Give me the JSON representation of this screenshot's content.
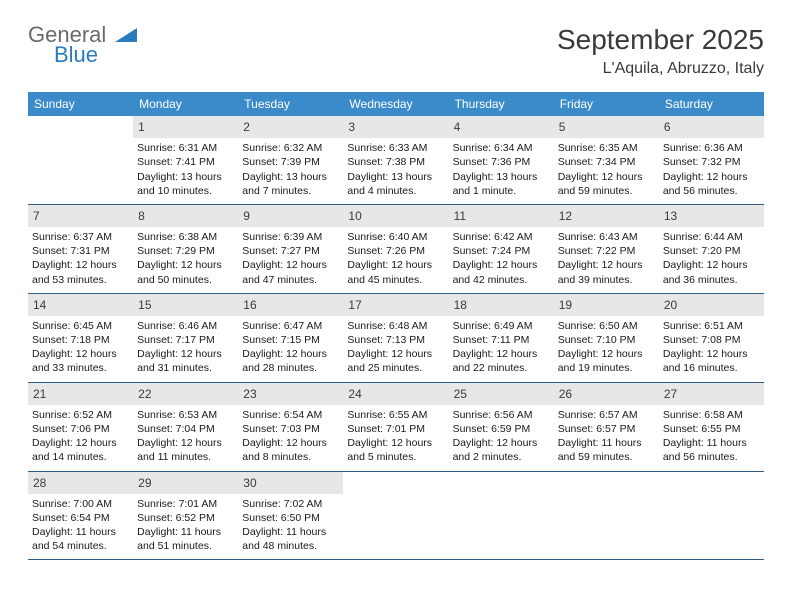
{
  "logo": {
    "text_general": "General",
    "text_blue": "Blue",
    "triangle_fill": "#2d7bbf"
  },
  "title": "September 2025",
  "location": "L'Aquila, Abruzzo, Italy",
  "colors": {
    "header_bg": "#3b8bca",
    "header_text": "#ffffff",
    "daynum_bg": "#e7e7e7",
    "daynum_text": "#3a3a3a",
    "week_border": "#2e5d84",
    "body_text": "#1a1a1a",
    "title_text": "#3a3a3a",
    "page_bg": "#ffffff"
  },
  "font": {
    "family": "Arial",
    "dow_size": 12,
    "body_size": 10.5,
    "title_size": 28,
    "location_size": 16
  },
  "days_of_week": [
    "Sunday",
    "Monday",
    "Tuesday",
    "Wednesday",
    "Thursday",
    "Friday",
    "Saturday"
  ],
  "weeks": [
    [
      {
        "num": "",
        "lines": []
      },
      {
        "num": "1",
        "lines": [
          "Sunrise: 6:31 AM",
          "Sunset: 7:41 PM",
          "Daylight: 13 hours",
          "and 10 minutes."
        ]
      },
      {
        "num": "2",
        "lines": [
          "Sunrise: 6:32 AM",
          "Sunset: 7:39 PM",
          "Daylight: 13 hours",
          "and 7 minutes."
        ]
      },
      {
        "num": "3",
        "lines": [
          "Sunrise: 6:33 AM",
          "Sunset: 7:38 PM",
          "Daylight: 13 hours",
          "and 4 minutes."
        ]
      },
      {
        "num": "4",
        "lines": [
          "Sunrise: 6:34 AM",
          "Sunset: 7:36 PM",
          "Daylight: 13 hours",
          "and 1 minute."
        ]
      },
      {
        "num": "5",
        "lines": [
          "Sunrise: 6:35 AM",
          "Sunset: 7:34 PM",
          "Daylight: 12 hours",
          "and 59 minutes."
        ]
      },
      {
        "num": "6",
        "lines": [
          "Sunrise: 6:36 AM",
          "Sunset: 7:32 PM",
          "Daylight: 12 hours",
          "and 56 minutes."
        ]
      }
    ],
    [
      {
        "num": "7",
        "lines": [
          "Sunrise: 6:37 AM",
          "Sunset: 7:31 PM",
          "Daylight: 12 hours",
          "and 53 minutes."
        ]
      },
      {
        "num": "8",
        "lines": [
          "Sunrise: 6:38 AM",
          "Sunset: 7:29 PM",
          "Daylight: 12 hours",
          "and 50 minutes."
        ]
      },
      {
        "num": "9",
        "lines": [
          "Sunrise: 6:39 AM",
          "Sunset: 7:27 PM",
          "Daylight: 12 hours",
          "and 47 minutes."
        ]
      },
      {
        "num": "10",
        "lines": [
          "Sunrise: 6:40 AM",
          "Sunset: 7:26 PM",
          "Daylight: 12 hours",
          "and 45 minutes."
        ]
      },
      {
        "num": "11",
        "lines": [
          "Sunrise: 6:42 AM",
          "Sunset: 7:24 PM",
          "Daylight: 12 hours",
          "and 42 minutes."
        ]
      },
      {
        "num": "12",
        "lines": [
          "Sunrise: 6:43 AM",
          "Sunset: 7:22 PM",
          "Daylight: 12 hours",
          "and 39 minutes."
        ]
      },
      {
        "num": "13",
        "lines": [
          "Sunrise: 6:44 AM",
          "Sunset: 7:20 PM",
          "Daylight: 12 hours",
          "and 36 minutes."
        ]
      }
    ],
    [
      {
        "num": "14",
        "lines": [
          "Sunrise: 6:45 AM",
          "Sunset: 7:18 PM",
          "Daylight: 12 hours",
          "and 33 minutes."
        ]
      },
      {
        "num": "15",
        "lines": [
          "Sunrise: 6:46 AM",
          "Sunset: 7:17 PM",
          "Daylight: 12 hours",
          "and 31 minutes."
        ]
      },
      {
        "num": "16",
        "lines": [
          "Sunrise: 6:47 AM",
          "Sunset: 7:15 PM",
          "Daylight: 12 hours",
          "and 28 minutes."
        ]
      },
      {
        "num": "17",
        "lines": [
          "Sunrise: 6:48 AM",
          "Sunset: 7:13 PM",
          "Daylight: 12 hours",
          "and 25 minutes."
        ]
      },
      {
        "num": "18",
        "lines": [
          "Sunrise: 6:49 AM",
          "Sunset: 7:11 PM",
          "Daylight: 12 hours",
          "and 22 minutes."
        ]
      },
      {
        "num": "19",
        "lines": [
          "Sunrise: 6:50 AM",
          "Sunset: 7:10 PM",
          "Daylight: 12 hours",
          "and 19 minutes."
        ]
      },
      {
        "num": "20",
        "lines": [
          "Sunrise: 6:51 AM",
          "Sunset: 7:08 PM",
          "Daylight: 12 hours",
          "and 16 minutes."
        ]
      }
    ],
    [
      {
        "num": "21",
        "lines": [
          "Sunrise: 6:52 AM",
          "Sunset: 7:06 PM",
          "Daylight: 12 hours",
          "and 14 minutes."
        ]
      },
      {
        "num": "22",
        "lines": [
          "Sunrise: 6:53 AM",
          "Sunset: 7:04 PM",
          "Daylight: 12 hours",
          "and 11 minutes."
        ]
      },
      {
        "num": "23",
        "lines": [
          "Sunrise: 6:54 AM",
          "Sunset: 7:03 PM",
          "Daylight: 12 hours",
          "and 8 minutes."
        ]
      },
      {
        "num": "24",
        "lines": [
          "Sunrise: 6:55 AM",
          "Sunset: 7:01 PM",
          "Daylight: 12 hours",
          "and 5 minutes."
        ]
      },
      {
        "num": "25",
        "lines": [
          "Sunrise: 6:56 AM",
          "Sunset: 6:59 PM",
          "Daylight: 12 hours",
          "and 2 minutes."
        ]
      },
      {
        "num": "26",
        "lines": [
          "Sunrise: 6:57 AM",
          "Sunset: 6:57 PM",
          "Daylight: 11 hours",
          "and 59 minutes."
        ]
      },
      {
        "num": "27",
        "lines": [
          "Sunrise: 6:58 AM",
          "Sunset: 6:55 PM",
          "Daylight: 11 hours",
          "and 56 minutes."
        ]
      }
    ],
    [
      {
        "num": "28",
        "lines": [
          "Sunrise: 7:00 AM",
          "Sunset: 6:54 PM",
          "Daylight: 11 hours",
          "and 54 minutes."
        ]
      },
      {
        "num": "29",
        "lines": [
          "Sunrise: 7:01 AM",
          "Sunset: 6:52 PM",
          "Daylight: 11 hours",
          "and 51 minutes."
        ]
      },
      {
        "num": "30",
        "lines": [
          "Sunrise: 7:02 AM",
          "Sunset: 6:50 PM",
          "Daylight: 11 hours",
          "and 48 minutes."
        ]
      },
      {
        "num": "",
        "lines": []
      },
      {
        "num": "",
        "lines": []
      },
      {
        "num": "",
        "lines": []
      },
      {
        "num": "",
        "lines": []
      }
    ]
  ]
}
